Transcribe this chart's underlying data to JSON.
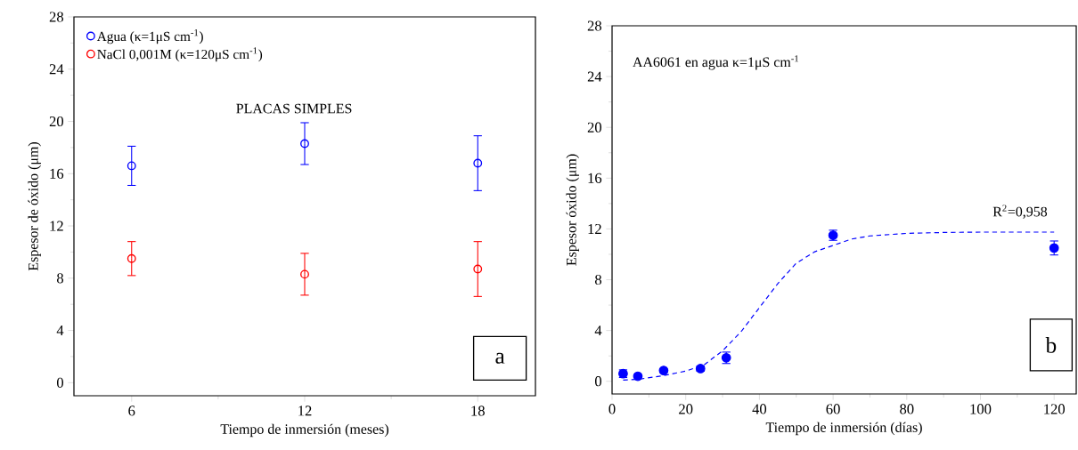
{
  "chart_data": [
    {
      "type": "scatter",
      "xlabel": "Tiempo de inmersión (meses)",
      "ylabel": "Espesor de óxido (μm)",
      "xlim": [
        4,
        20
      ],
      "xticks": [
        6,
        12,
        18
      ],
      "ylim": [
        -1,
        28
      ],
      "yticks": [
        0,
        4,
        8,
        12,
        16,
        20,
        24,
        28
      ],
      "legend": "top left",
      "marker": "circle",
      "series": [
        {
          "name": "Agua (κ=1μS cm$^{-1}$)",
          "color": "#0000ff",
          "x": [
            6,
            12,
            18
          ],
          "values": [
            16.6,
            18.3,
            16.8
          ],
          "errors": [
            1.5,
            1.6,
            2.1
          ]
        },
        {
          "name": "NaCl 0,001M (κ=120μS cm$^{-1}$)",
          "color": "#ff0000",
          "x": [
            6,
            12,
            18
          ],
          "values": [
            9.5,
            8.3,
            8.7
          ],
          "errors": [
            1.3,
            1.6,
            2.1
          ]
        }
      ],
      "annotations": [
        "PLACAS SIMPLES",
        "a"
      ]
    },
    {
      "type": "scatter",
      "xlabel": "Tiempo de inmersión (días)",
      "ylabel": "Espesor óxido (μm)",
      "xlim": [
        0,
        126
      ],
      "xticks": [
        0,
        20,
        40,
        60,
        80,
        100,
        120
      ],
      "ylim": [
        -1,
        28
      ],
      "yticks": [
        0,
        4,
        8,
        12,
        16,
        20,
        24,
        28
      ],
      "marker": "circle",
      "series": [
        {
          "type": "line",
          "line_style": "dashed",
          "marker": "none",
          "color": "#0000ff",
          "x": [
            3,
            7,
            14,
            20,
            25,
            30,
            35,
            40,
            45,
            50,
            55,
            60,
            65,
            70,
            80,
            90,
            100,
            120
          ],
          "values": [
            0.1,
            0.15,
            0.45,
            0.8,
            1.3,
            2.4,
            3.9,
            5.8,
            7.7,
            9.3,
            10.2,
            10.7,
            11.2,
            11.45,
            11.65,
            11.72,
            11.75,
            11.75
          ]
        },
        {
          "color": "#0000ff",
          "x": [
            3,
            7,
            14,
            24,
            31,
            60,
            120
          ],
          "values": [
            0.6,
            0.4,
            0.85,
            1.0,
            1.85,
            11.5,
            10.5
          ],
          "errors": [
            0.3,
            null,
            null,
            0.2,
            0.45,
            0.4,
            0.55
          ]
        }
      ],
      "annotations": [
        "AA6061 en agua κ=1μS cm$^{-1}$",
        "R$^{2}$=0,958",
        "b"
      ]
    }
  ]
}
